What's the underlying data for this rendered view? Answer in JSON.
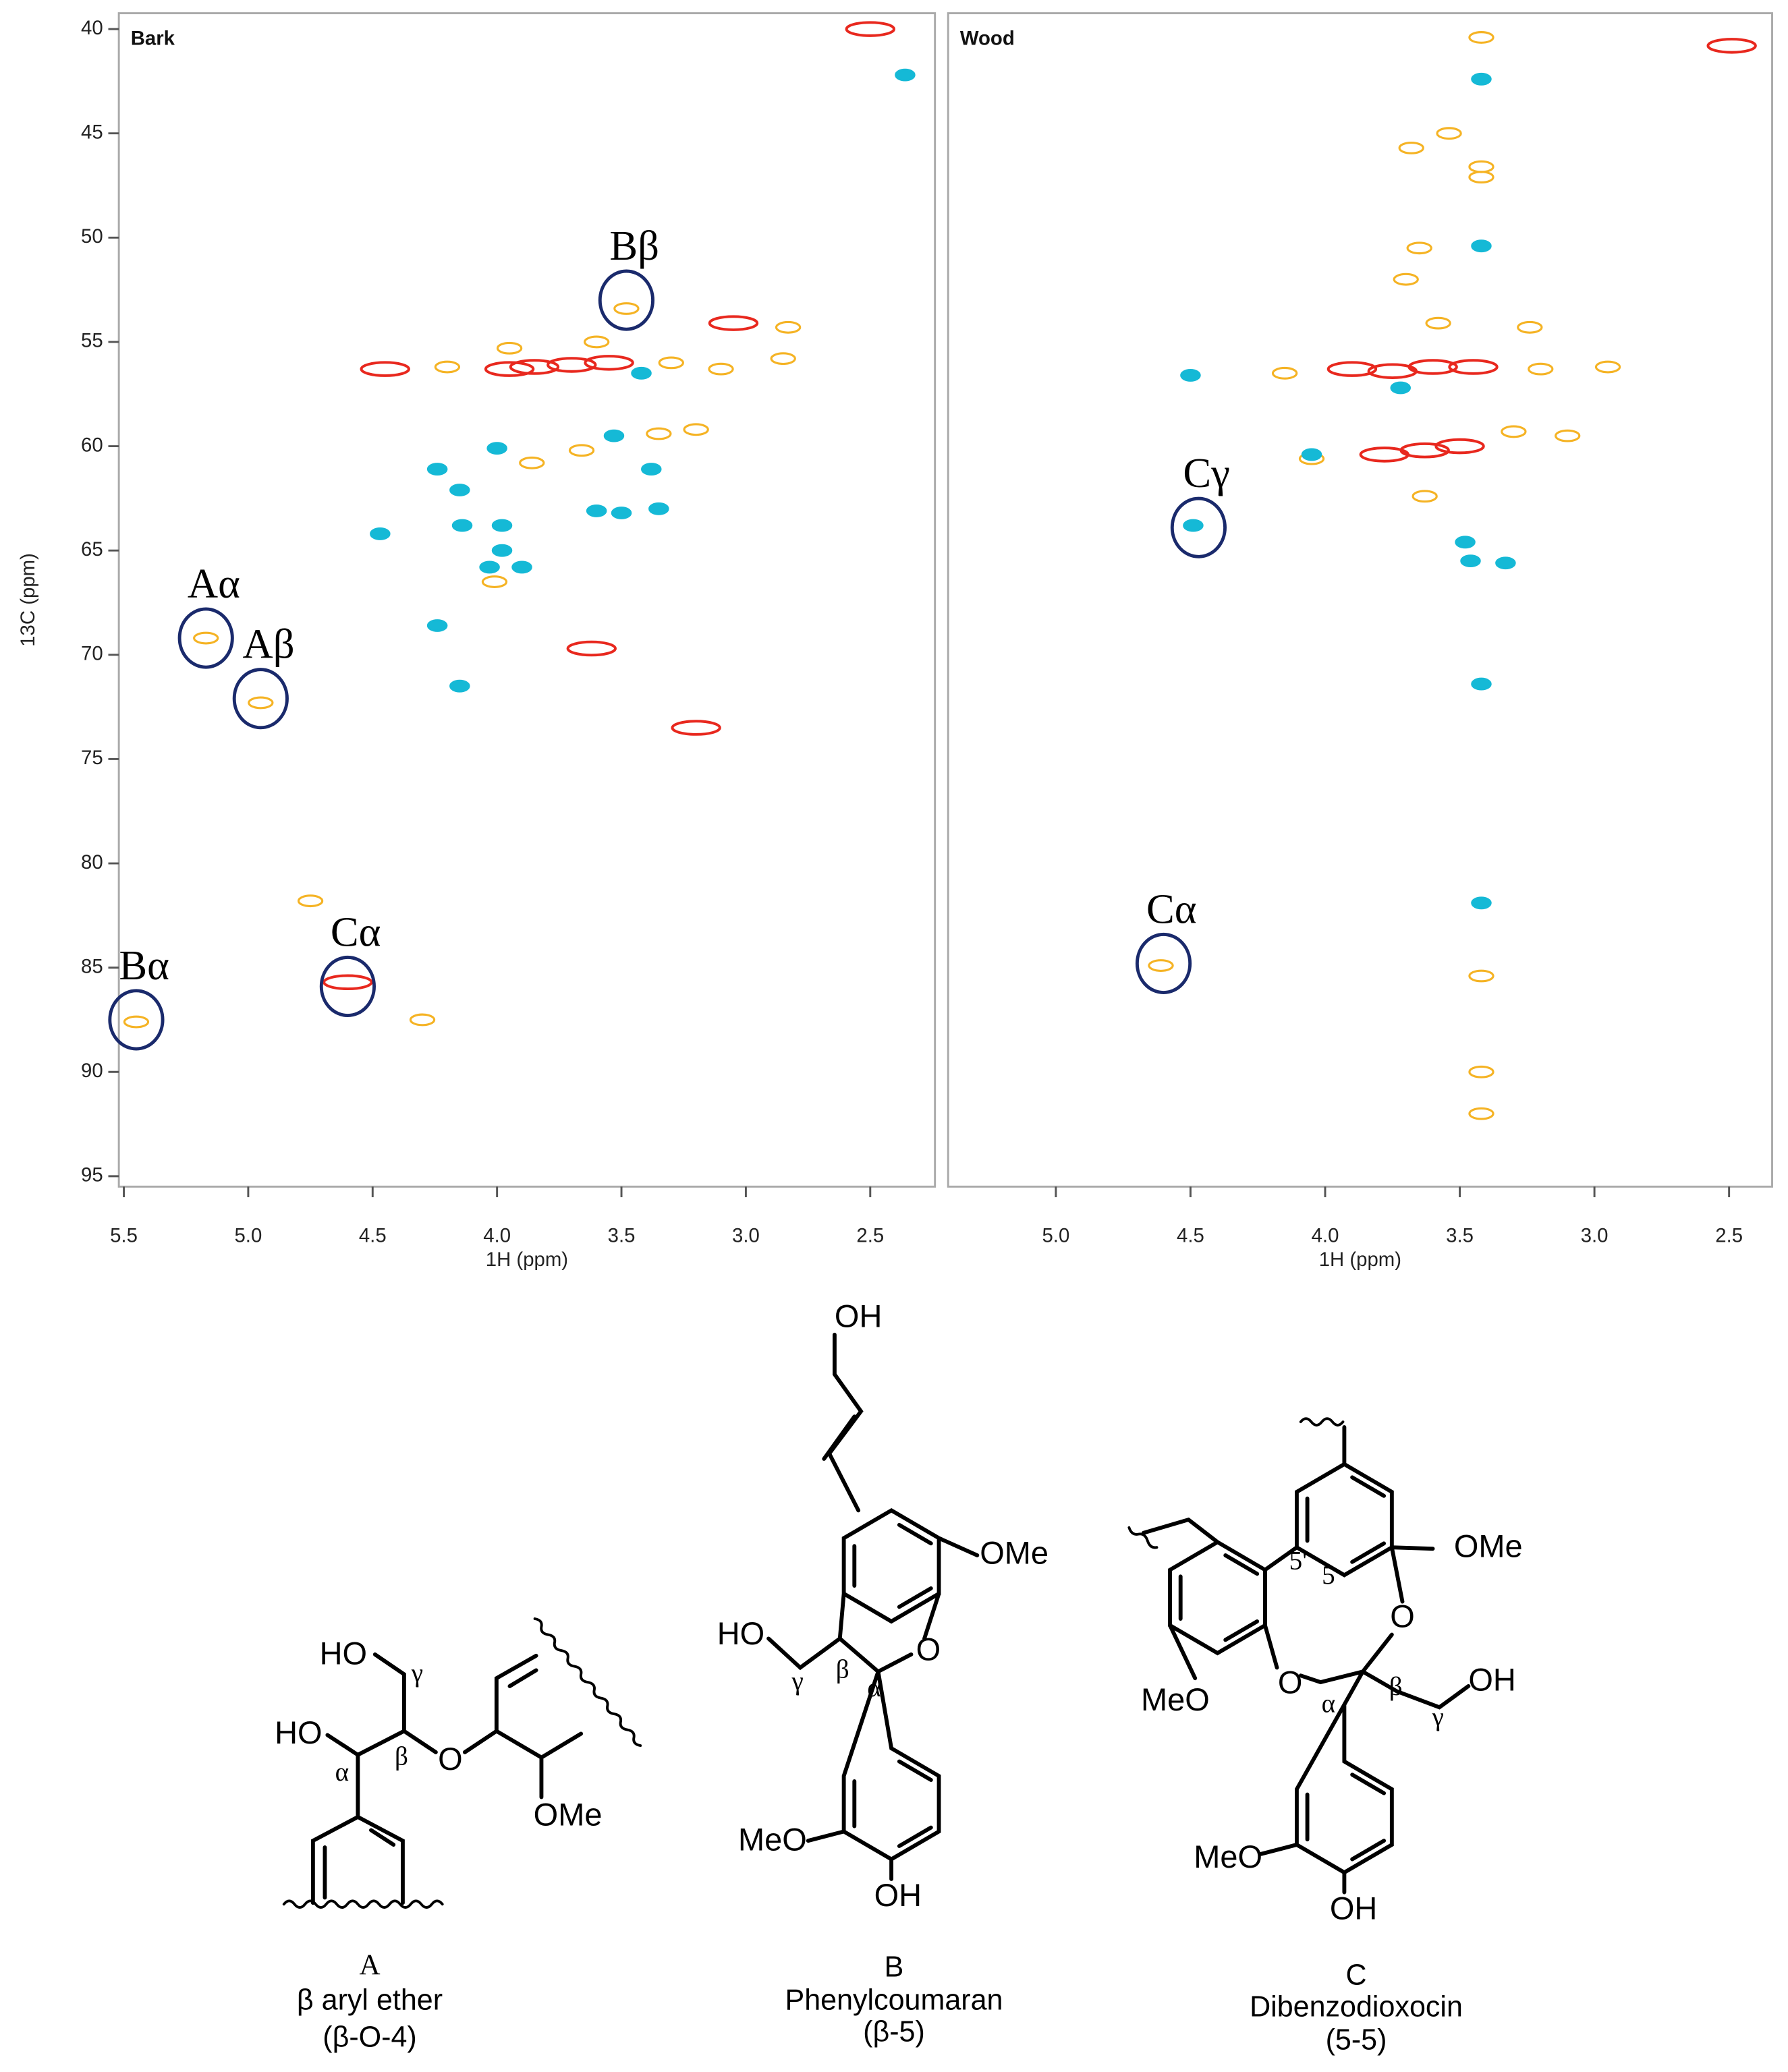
{
  "chart_data": [
    {
      "type": "contour",
      "title": "Bark",
      "x_label": "1H (ppm)",
      "y_label": "13C (ppm)",
      "xlim": [
        5.52,
        2.24
      ],
      "ylim": [
        95.5,
        39.24
      ],
      "xticks": [
        5.5,
        {
          "value": 5,
          "label": "5.0"
        },
        4.5,
        {
          "value": 4,
          "label": "4.0"
        },
        3.5,
        {
          "value": 3,
          "label": "3.0"
        },
        2.5
      ],
      "yticks": [
        40,
        45,
        50,
        55,
        60,
        65,
        70,
        75,
        80,
        85,
        90,
        95
      ],
      "series": [
        {
          "color": "#f5b324",
          "x": [
            4.2,
            3.3,
            3.1,
            2.85,
            3.6,
            3.95,
            3.66,
            3.35,
            3.2,
            3.86,
            4.01,
            4.75,
            4.3,
            5.17,
            4.95,
            5.45,
            3.48,
            2.83
          ],
          "values": [
            56.2,
            56.0,
            56.3,
            55.8,
            55.0,
            55.3,
            60.2,
            59.4,
            59.2,
            60.8,
            66.5,
            81.8,
            87.5,
            69.2,
            72.3,
            87.6,
            53.4,
            54.3
          ]
        },
        {
          "color": "#e8281e",
          "x": [
            2.5,
            3.05,
            3.85,
            3.7,
            3.55,
            3.95,
            4.45,
            3.62,
            3.2,
            4.6
          ],
          "values": [
            40,
            54.1,
            56.2,
            56.1,
            56.0,
            56.3,
            56.3,
            69.7,
            73.5,
            85.7
          ]
        },
        {
          "color": "#15b9d6",
          "x": [
            2.36,
            4.0,
            3.38,
            3.35,
            3.98,
            4.14,
            3.98,
            4.03,
            3.9,
            4.24,
            4.15,
            3.6,
            3.5,
            4.15,
            3.42,
            3.53,
            4.24,
            4.47
          ],
          "values": [
            42.2,
            60.1,
            61.1,
            63.0,
            63.8,
            63.8,
            65.0,
            65.8,
            65.8,
            61.1,
            62.1,
            63.1,
            63.2,
            71.5,
            56.5,
            59.5,
            68.6,
            64.2
          ]
        }
      ],
      "annotations": [
        {
          "text": "Aα",
          "x": 5.17,
          "y": 69.2
        },
        {
          "text": "Aβ",
          "x": 4.95,
          "y": 72.1
        },
        {
          "text": "Bβ",
          "x": 3.48,
          "y": 53.0
        },
        {
          "text": "Bα",
          "x": 5.45,
          "y": 87.5
        },
        {
          "text": "Cα",
          "x": 4.6,
          "y": 85.9
        }
      ]
    },
    {
      "type": "contour",
      "title": "Wood",
      "x_label": "1H (ppm)",
      "xlim": [
        5.4,
        2.34
      ],
      "ylim": [
        95.5,
        39.24
      ],
      "xticks": [
        {
          "value": 5,
          "label": "5.0"
        },
        4.5,
        {
          "value": 4,
          "label": "4.0"
        },
        3.5,
        {
          "value": 3,
          "label": "3.0"
        },
        2.5
      ],
      "series": [
        {
          "color": "#f5b324",
          "x": [
            4.15,
            3.2,
            2.95,
            4.05,
            3.3,
            3.1,
            3.24,
            3.58,
            3.7,
            3.65,
            3.68,
            3.42,
            3.42,
            3.54,
            3.63,
            4.61,
            3.42,
            3.42,
            3.42,
            3.42
          ],
          "values": [
            56.5,
            56.3,
            56.2,
            60.6,
            59.3,
            59.5,
            54.3,
            54.1,
            52,
            50.5,
            45.7,
            47.1,
            46.6,
            45.0,
            62.4,
            84.9,
            92.0,
            90.0,
            85.4,
            40.4
          ]
        },
        {
          "color": "#e8281e",
          "x": [
            2.49,
            3.9,
            3.75,
            3.6,
            3.45,
            3.63,
            3.78,
            3.5
          ],
          "values": [
            40.8,
            56.3,
            56.4,
            56.2,
            56.2,
            60.2,
            60.4,
            60.0
          ]
        },
        {
          "color": "#15b9d6",
          "x": [
            4.05,
            4.49,
            3.46,
            3.33,
            3.48,
            3.42,
            3.72,
            4.5,
            3.42,
            3.42,
            3.42
          ],
          "values": [
            60.4,
            63.8,
            65.5,
            65.6,
            64.6,
            50.4,
            57.2,
            56.6,
            71.4,
            81.9,
            42.4
          ]
        }
      ],
      "annotations": [
        {
          "text": "Cγ",
          "x": 4.47,
          "y": 63.9
        },
        {
          "text": "Cα",
          "x": 4.6,
          "y": 84.8
        }
      ]
    }
  ],
  "structures": [
    {
      "label": "A",
      "name": "β aryl ether",
      "linkage": "(β-O-4)",
      "atoms": [
        "HO",
        "γ",
        "HO",
        "β",
        "O",
        "α",
        "OMe"
      ]
    },
    {
      "label": "B",
      "name": "Phenylcoumaran",
      "linkage": "(β-5)",
      "atoms": [
        "OH",
        "OMe",
        "HO",
        "γ",
        "β",
        "α",
        "O",
        "MeO",
        "OH"
      ]
    },
    {
      "label": "C",
      "name": "Dibenzodioxocin",
      "linkage": "(5-5)",
      "atoms": [
        "OMe",
        "5'",
        "5",
        "O",
        "MeO",
        "O",
        "α",
        "β",
        "γ",
        "OH",
        "MeO",
        "OH"
      ]
    }
  ]
}
